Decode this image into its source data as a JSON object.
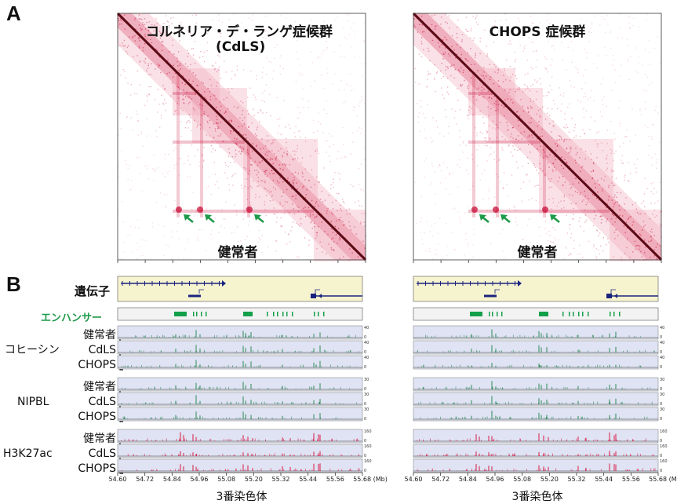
{
  "panels": {
    "a": "A",
    "b": "B"
  },
  "hic": {
    "left": {
      "title_line1": "コルネリア・デ・ランゲ症候群",
      "title_line2": "(CdLS)",
      "bottom": "健常者"
    },
    "right": {
      "title_line1": "CHOPS 症候群",
      "title_line2": "",
      "bottom": "健常者"
    }
  },
  "tracks": {
    "gene_label": "遺伝子",
    "enhancer_label": "エンハンサー",
    "groups": [
      {
        "name": "コヒーシン",
        "rows": [
          "健常者",
          "CdLS",
          "CHOPS"
        ],
        "scale": [
          "40",
          "0"
        ],
        "color": "#2e8b57"
      },
      {
        "name": "NIPBL",
        "rows": [
          "健常者",
          "CdLS",
          "CHOPS"
        ],
        "scale": [
          "30",
          "0"
        ],
        "color": "#2e8b57"
      },
      {
        "name": "H3K27ac",
        "rows": [
          "健常者",
          "CdLS",
          "CHOPS"
        ],
        "scale": [
          "160",
          "0"
        ],
        "color": "#d81b45"
      }
    ]
  },
  "axis": {
    "ticks": [
      "54.60",
      "54.72",
      "54.84",
      "54.96",
      "55.08",
      "55.20",
      "55.32",
      "55.44",
      "55.56",
      "55.68 (Mb)"
    ],
    "xlabel": "3番染色体"
  },
  "colors": {
    "hic": "#c8103a",
    "gene": "#1a237e",
    "enhancer": "#14a04a",
    "track_bg": "#dfe3f3",
    "gene_bg": "#f6f3cf"
  }
}
